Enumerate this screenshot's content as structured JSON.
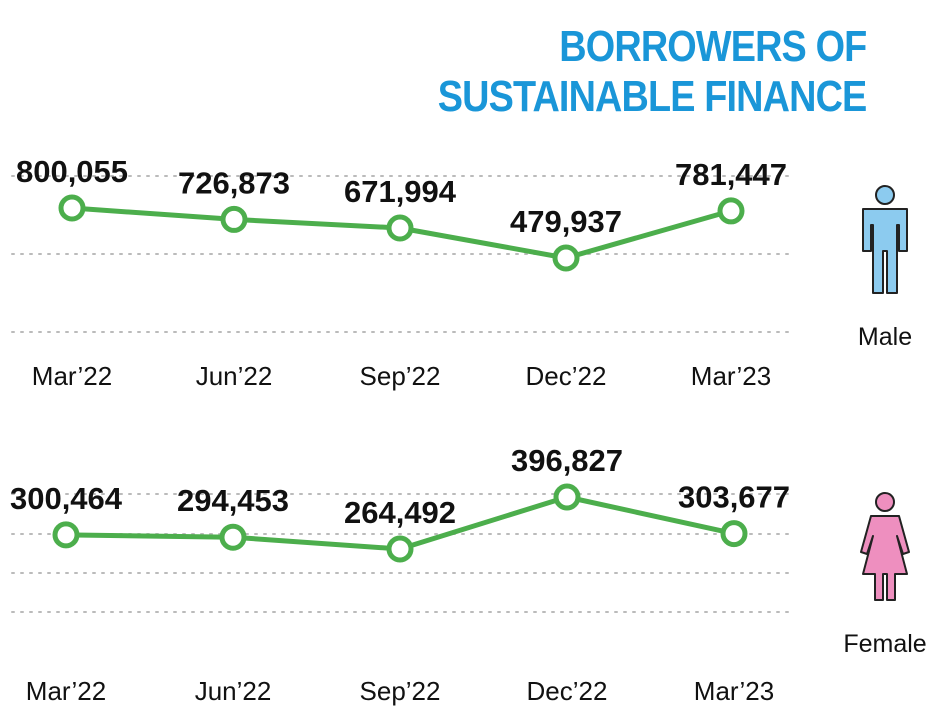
{
  "title": {
    "line1": "BORROWERS OF",
    "line2": "SUSTAINABLE FINANCE"
  },
  "colors": {
    "title": "#1a96d8",
    "line": "#4cae4c",
    "male_icon": "#8ccbef",
    "female_icon": "#ee8fbf",
    "grid": "#bbbbbb"
  },
  "icons": {
    "male": "male-person-icon",
    "female": "female-person-icon"
  },
  "chart_data": [
    {
      "type": "line",
      "categories": [
        "Mar’22",
        "Jun’22",
        "Sep’22",
        "Dec’22",
        "Mar’23"
      ],
      "series": [
        {
          "name": "Male",
          "values": [
            800055,
            726873,
            671994,
            479937,
            781447
          ],
          "labels": [
            "800,055",
            "726,873",
            "671,994",
            "479,937",
            "781,447"
          ]
        }
      ],
      "grid": true
    },
    {
      "type": "line",
      "categories": [
        "Mar’22",
        "Jun’22",
        "Sep’22",
        "Dec’22",
        "Mar’23"
      ],
      "series": [
        {
          "name": "Female",
          "values": [
            300464,
            294453,
            264492,
            396827,
            303677
          ],
          "labels": [
            "300,464",
            "294,453",
            "264,492",
            "396,827",
            "303,677"
          ]
        }
      ],
      "grid": true
    }
  ]
}
